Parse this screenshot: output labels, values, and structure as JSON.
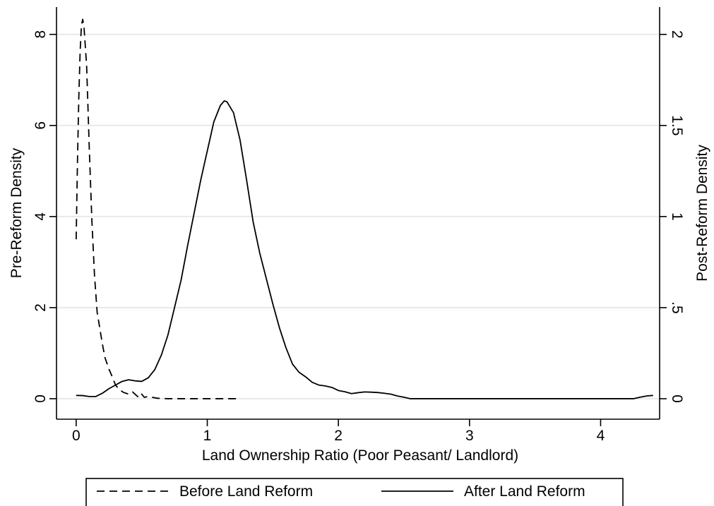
{
  "chart_data": {
    "type": "line",
    "title": "",
    "xlabel": "Land Ownership Ratio (Poor Peasant/ Landlord)",
    "ylabel_left": "Pre-Reform Density",
    "ylabel_right": "Post-Reform Density",
    "xlim": [
      -0.15,
      4.45
    ],
    "ylim_left": [
      -0.45,
      8.6
    ],
    "ylim_right": [
      -0.1125,
      2.15
    ],
    "x_ticks": [
      {
        "value": 0,
        "label": "0"
      },
      {
        "value": 1,
        "label": "1"
      },
      {
        "value": 2,
        "label": "2"
      },
      {
        "value": 3,
        "label": "3"
      },
      {
        "value": 4,
        "label": "4"
      }
    ],
    "y_left_ticks": [
      {
        "value": 0,
        "label": "0"
      },
      {
        "value": 2,
        "label": "2"
      },
      {
        "value": 4,
        "label": "4"
      },
      {
        "value": 6,
        "label": "6"
      },
      {
        "value": 8,
        "label": "8"
      }
    ],
    "y_right_ticks": [
      {
        "value": 0,
        "label": "0"
      },
      {
        "value": 0.5,
        "label": ".5"
      },
      {
        "value": 1,
        "label": "1"
      },
      {
        "value": 1.5,
        "label": "1.5"
      },
      {
        "value": 2,
        "label": "2"
      }
    ],
    "grid": true,
    "legend_position": "bottom",
    "series": [
      {
        "name": "Before Land Reform",
        "axis": "left",
        "style": "dashed",
        "color": "#000000",
        "points": [
          [
            0.0,
            3.5
          ],
          [
            0.01,
            5.2
          ],
          [
            0.02,
            6.6
          ],
          [
            0.03,
            7.6
          ],
          [
            0.04,
            8.2
          ],
          [
            0.05,
            8.33
          ],
          [
            0.06,
            8.15
          ],
          [
            0.08,
            7.3
          ],
          [
            0.1,
            5.5
          ],
          [
            0.12,
            3.9
          ],
          [
            0.14,
            2.7
          ],
          [
            0.16,
            1.9
          ],
          [
            0.18,
            1.55
          ],
          [
            0.2,
            1.2
          ],
          [
            0.22,
            0.9
          ],
          [
            0.25,
            0.65
          ],
          [
            0.28,
            0.45
          ],
          [
            0.3,
            0.3
          ],
          [
            0.33,
            0.2
          ],
          [
            0.36,
            0.14
          ],
          [
            0.4,
            0.1
          ],
          [
            0.43,
            0.15
          ],
          [
            0.46,
            0.07
          ],
          [
            0.48,
            0.02
          ],
          [
            0.5,
            0.1
          ],
          [
            0.52,
            0.03
          ],
          [
            0.55,
            0.05
          ],
          [
            0.58,
            0.03
          ],
          [
            0.62,
            0.01
          ],
          [
            0.7,
            0.0
          ],
          [
            0.8,
            0.0
          ],
          [
            1.0,
            0.0
          ],
          [
            1.2,
            0.0
          ],
          [
            1.25,
            0.0
          ]
        ]
      },
      {
        "name": "After Land Reform",
        "axis": "right",
        "style": "solid",
        "color": "#000000",
        "points": [
          [
            0.0,
            0.018
          ],
          [
            0.05,
            0.017
          ],
          [
            0.1,
            0.012
          ],
          [
            0.15,
            0.012
          ],
          [
            0.2,
            0.03
          ],
          [
            0.25,
            0.055
          ],
          [
            0.3,
            0.075
          ],
          [
            0.35,
            0.095
          ],
          [
            0.4,
            0.104
          ],
          [
            0.45,
            0.098
          ],
          [
            0.5,
            0.095
          ],
          [
            0.55,
            0.115
          ],
          [
            0.6,
            0.16
          ],
          [
            0.65,
            0.24
          ],
          [
            0.7,
            0.35
          ],
          [
            0.75,
            0.5
          ],
          [
            0.8,
            0.65
          ],
          [
            0.85,
            0.84
          ],
          [
            0.9,
            1.02
          ],
          [
            0.95,
            1.2
          ],
          [
            1.0,
            1.36
          ],
          [
            1.05,
            1.52
          ],
          [
            1.1,
            1.61
          ],
          [
            1.13,
            1.635
          ],
          [
            1.15,
            1.63
          ],
          [
            1.2,
            1.57
          ],
          [
            1.25,
            1.42
          ],
          [
            1.3,
            1.2
          ],
          [
            1.35,
            0.97
          ],
          [
            1.4,
            0.8
          ],
          [
            1.45,
            0.66
          ],
          [
            1.5,
            0.52
          ],
          [
            1.55,
            0.39
          ],
          [
            1.6,
            0.28
          ],
          [
            1.65,
            0.19
          ],
          [
            1.7,
            0.145
          ],
          [
            1.75,
            0.12
          ],
          [
            1.8,
            0.09
          ],
          [
            1.85,
            0.075
          ],
          [
            1.9,
            0.07
          ],
          [
            1.95,
            0.062
          ],
          [
            2.0,
            0.045
          ],
          [
            2.05,
            0.038
          ],
          [
            2.1,
            0.028
          ],
          [
            2.15,
            0.033
          ],
          [
            2.2,
            0.037
          ],
          [
            2.25,
            0.036
          ],
          [
            2.3,
            0.034
          ],
          [
            2.35,
            0.03
          ],
          [
            2.4,
            0.025
          ],
          [
            2.45,
            0.015
          ],
          [
            2.5,
            0.008
          ],
          [
            2.55,
            0.0
          ],
          [
            3.0,
            0.0
          ],
          [
            3.5,
            0.0
          ],
          [
            4.0,
            0.0
          ],
          [
            4.25,
            0.0
          ],
          [
            4.3,
            0.008
          ],
          [
            4.35,
            0.015
          ],
          [
            4.4,
            0.018
          ]
        ]
      }
    ]
  }
}
